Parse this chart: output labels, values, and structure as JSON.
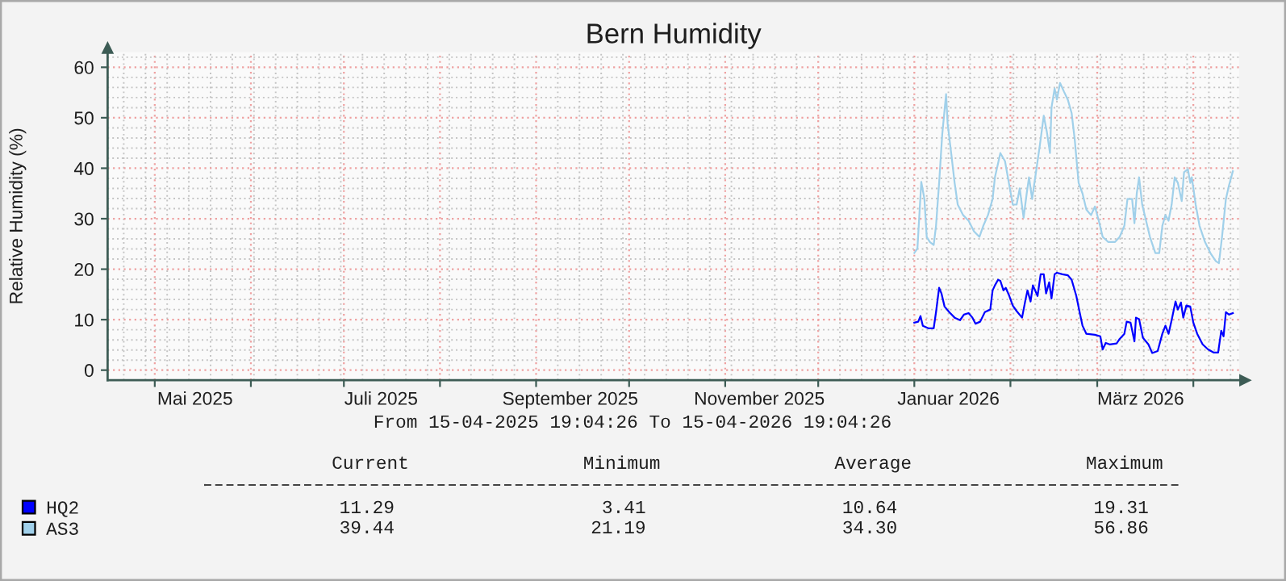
{
  "chart_data": {
    "type": "line",
    "title": "Bern Humidity",
    "ylabel": "Relative Humidity (%)",
    "xlim": [
      "2025-04-15T19:04",
      "2026-04-15T19:04"
    ],
    "xticks": [
      {
        "value": "2025-05-01",
        "label": null
      },
      {
        "value": "2025-05-14",
        "label": "Mai 2025"
      },
      {
        "value": "2025-06-01",
        "label": null
      },
      {
        "value": "2025-07-01",
        "label": null
      },
      {
        "value": "2025-07-13",
        "label": "Juli 2025"
      },
      {
        "value": "2025-08-01",
        "label": null
      },
      {
        "value": "2025-09-01",
        "label": null
      },
      {
        "value": "2025-09-12",
        "label": "September 2025"
      },
      {
        "value": "2025-10-01",
        "label": null
      },
      {
        "value": "2025-11-01",
        "label": null
      },
      {
        "value": "2025-11-12",
        "label": "November 2025"
      },
      {
        "value": "2025-12-01",
        "label": null
      },
      {
        "value": "2026-01-01",
        "label": null
      },
      {
        "value": "2026-01-12",
        "label": "Januar 2026"
      },
      {
        "value": "2026-02-01",
        "label": null
      },
      {
        "value": "2026-03-01",
        "label": null
      },
      {
        "value": "2026-03-15",
        "label": "März 2026"
      },
      {
        "value": "2026-04-01",
        "label": null
      }
    ],
    "ylim": [
      -2,
      63
    ],
    "yticks": [
      0,
      10,
      20,
      30,
      40,
      50,
      60
    ],
    "grid": true,
    "legend": "bottom left",
    "series": [
      {
        "name": "HQ2",
        "color": "#0000ff",
        "x": [
          "2026-01-01T00:00",
          "2026-01-02T06:00",
          "2026-01-03T00:00",
          "2026-01-03T18:00",
          "2026-01-05T12:00",
          "2026-01-07T06:00",
          "2026-01-08T00:00",
          "2026-01-09T00:00",
          "2026-01-09T18:00",
          "2026-01-10T18:00",
          "2026-01-12T06:00",
          "2026-01-14T00:00",
          "2026-01-15T18:00",
          "2026-01-17T00:00",
          "2026-01-18T12:00",
          "2026-01-19T18:00",
          "2026-01-20T18:00",
          "2026-01-22T06:00",
          "2026-01-23T18:00",
          "2026-01-25T12:00",
          "2026-01-26T06:00",
          "2026-01-27T00:00",
          "2026-01-28T00:00",
          "2026-01-28T18:00",
          "2026-01-29T18:00",
          "2026-01-30T12:00",
          "2026-01-31T12:00",
          "2026-02-01T18:00",
          "2026-02-03T00:00",
          "2026-02-04T18:00",
          "2026-02-05T18:00",
          "2026-02-06T12:00",
          "2026-02-07T12:00",
          "2026-02-08T06:00",
          "2026-02-09T18:00",
          "2026-02-10T18:00",
          "2026-02-11T18:00",
          "2026-02-12T12:00",
          "2026-02-13T12:00",
          "2026-02-14T06:00",
          "2026-02-15T06:00",
          "2026-02-16T00:00",
          "2026-02-17T18:00",
          "2026-02-19T12:00",
          "2026-02-20T18:00",
          "2026-02-22T06:00",
          "2026-02-23T06:00",
          "2026-02-24T06:00",
          "2026-02-25T12:00",
          "2026-02-28T06:00",
          "2026-03-02T00:00",
          "2026-03-02T18:00",
          "2026-03-03T18:00",
          "2026-03-05T00:00",
          "2026-03-07T06:00",
          "2026-03-08T06:00",
          "2026-03-09T18:00",
          "2026-03-10T12:00",
          "2026-03-11T18:00",
          "2026-03-13T00:00",
          "2026-03-13T12:00",
          "2026-03-14T12:00",
          "2026-03-15T18:00",
          "2026-03-17T12:00",
          "2026-03-18T18:00",
          "2026-03-20T12:00",
          "2026-03-22T00:00",
          "2026-03-23T00:00",
          "2026-03-24T00:00",
          "2026-03-25T00:00",
          "2026-03-26T06:00",
          "2026-03-27T00:00",
          "2026-03-28T00:00",
          "2026-03-28T18:00",
          "2026-03-29T18:00",
          "2026-03-31T00:00",
          "2026-04-01T00:00",
          "2026-04-02T06:00",
          "2026-04-04T00:00",
          "2026-04-05T18:00",
          "2026-04-07T12:00",
          "2026-04-09T00:00",
          "2026-04-10T00:00",
          "2026-04-10T18:00",
          "2026-04-11T12:00",
          "2026-04-12T12:00",
          "2026-04-13T18:00"
        ],
        "values": [
          9.4,
          9.6,
          10.7,
          8.8,
          8.3,
          8.3,
          11.5,
          16.3,
          15.2,
          12.6,
          11.5,
          10.4,
          9.9,
          11.0,
          11.3,
          10.4,
          9.2,
          9.6,
          11.5,
          12.0,
          15.8,
          16.8,
          17.9,
          17.7,
          15.8,
          16.3,
          14.9,
          12.8,
          11.7,
          10.4,
          13.6,
          15.8,
          13.6,
          16.8,
          14.7,
          19.0,
          19.0,
          15.2,
          17.4,
          14.2,
          19.0,
          19.3,
          19.0,
          18.8,
          17.9,
          14.7,
          11.7,
          8.8,
          7.2,
          7.0,
          6.7,
          4.1,
          5.4,
          5.1,
          5.3,
          6.2,
          7.2,
          9.6,
          9.4,
          5.7,
          10.4,
          10.1,
          6.4,
          5.1,
          3.4,
          3.8,
          7.2,
          8.8,
          7.2,
          9.9,
          13.6,
          12.0,
          13.4,
          10.4,
          12.8,
          12.6,
          9.4,
          7.2,
          5.1,
          4.1,
          3.5,
          3.5,
          7.8,
          6.7,
          11.5,
          11.0,
          11.3
        ]
      },
      {
        "name": "AS3",
        "color": "#a0d0ea",
        "x": [
          "2026-01-01T00:00",
          "2026-01-02T00:00",
          "2026-01-03T06:00",
          "2026-01-04T06:00",
          "2026-01-05T00:00",
          "2026-01-06T00:00",
          "2026-01-07T06:00",
          "2026-01-08T00:00",
          "2026-01-09T00:00",
          "2026-01-10T00:00",
          "2026-01-11T06:00",
          "2026-01-11T18:00",
          "2026-01-13T00:00",
          "2026-01-14T00:00",
          "2026-01-15T00:00",
          "2026-01-16T18:00",
          "2026-01-18T12:00",
          "2026-01-20T06:00",
          "2026-01-22T00:00",
          "2026-01-23T06:00",
          "2026-01-24T18:00",
          "2026-01-26T06:00",
          "2026-01-27T00:00",
          "2026-01-28T18:00",
          "2026-01-30T06:00",
          "2026-01-31T12:00",
          "2026-02-01T18:00",
          "2026-02-03T00:00",
          "2026-02-04T00:00",
          "2026-02-05T06:00",
          "2026-02-06T06:00",
          "2026-02-07T00:00",
          "2026-02-08T00:00",
          "2026-02-09T00:00",
          "2026-02-10T12:00",
          "2026-02-11T18:00",
          "2026-02-12T18:00",
          "2026-02-13T18:00",
          "2026-02-14T06:00",
          "2026-02-15T06:00",
          "2026-02-16T00:00",
          "2026-02-17T00:00",
          "2026-02-18T06:00",
          "2026-02-19T12:00",
          "2026-02-20T18:00",
          "2026-02-21T18:00",
          "2026-02-23T00:00",
          "2026-02-24T06:00",
          "2026-02-25T12:00",
          "2026-02-27T00:00",
          "2026-02-28T06:00",
          "2026-03-01T12:00",
          "2026-03-02T18:00",
          "2026-03-04T12:00",
          "2026-03-06T18:00",
          "2026-03-08T06:00",
          "2026-03-09T18:00",
          "2026-03-10T18:00",
          "2026-03-12T06:00",
          "2026-03-13T00:00",
          "2026-03-13T18:00",
          "2026-03-14T12:00",
          "2026-03-15T12:00",
          "2026-03-16T18:00",
          "2026-03-18T00:00",
          "2026-03-19T18:00",
          "2026-03-21T00:00",
          "2026-03-22T00:00",
          "2026-03-23T00:00",
          "2026-03-24T00:00",
          "2026-03-25T00:00",
          "2026-03-26T00:00",
          "2026-03-27T00:00",
          "2026-03-28T06:00",
          "2026-03-29T00:00",
          "2026-03-30T06:00",
          "2026-03-31T00:00",
          "2026-03-31T12:00",
          "2026-04-01T18:00",
          "2026-04-03T00:00",
          "2026-04-04T18:00",
          "2026-04-06T12:00",
          "2026-04-08T06:00",
          "2026-04-09T06:00",
          "2026-04-10T06:00",
          "2026-04-11T12:00",
          "2026-04-12T12:00",
          "2026-04-13T18:00"
        ],
        "values": [
          23.2,
          24.1,
          37.3,
          33.9,
          26.4,
          25.4,
          24.8,
          28.6,
          37.1,
          46.7,
          54.7,
          48.8,
          42.4,
          37.1,
          32.8,
          30.7,
          29.6,
          27.5,
          26.4,
          28.6,
          30.7,
          33.9,
          38.2,
          43.0,
          41.4,
          37.1,
          32.8,
          32.8,
          36.0,
          30.2,
          35.0,
          38.2,
          33.9,
          38.2,
          44.6,
          50.4,
          47.2,
          43.0,
          52.0,
          55.8,
          53.6,
          56.9,
          55.2,
          53.6,
          50.9,
          45.6,
          37.1,
          35.0,
          31.8,
          30.7,
          32.4,
          29.6,
          26.4,
          25.4,
          25.4,
          26.4,
          28.6,
          33.9,
          33.9,
          29.1,
          35.0,
          38.2,
          32.8,
          29.6,
          26.4,
          23.2,
          23.2,
          28.6,
          30.7,
          29.6,
          32.8,
          38.2,
          37.1,
          33.5,
          39.2,
          39.8,
          37.1,
          38.2,
          32.8,
          28.6,
          25.4,
          23.2,
          21.6,
          21.2,
          26.4,
          33.9,
          36.6,
          39.4
        ]
      }
    ],
    "annotations": [
      "From 15-04-2025 19:04:26 To 15-04-2026 19:04:26",
      "Current",
      "Minimum",
      "Average",
      "Maximum",
      "11.29",
      "3.41",
      "10.64",
      "19.31",
      "39.44",
      "21.19",
      "34.30",
      "56.86"
    ]
  }
}
